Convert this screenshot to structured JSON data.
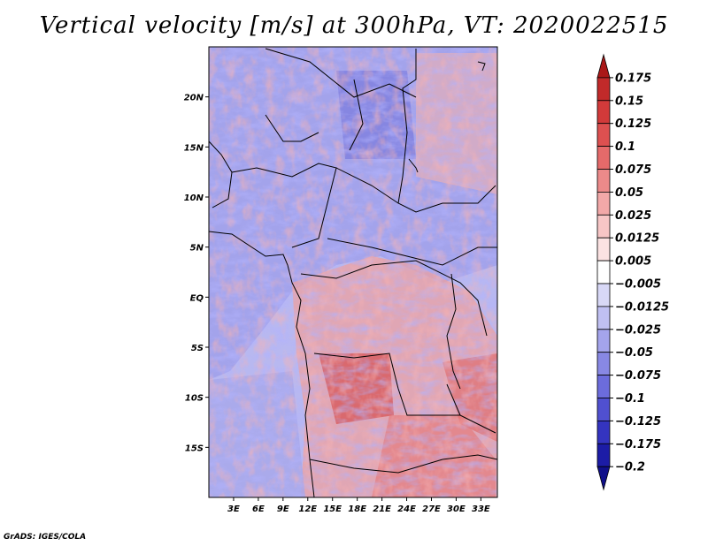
{
  "title": "Vertical velocity [m/s] at 300hPa, VT: 2020022515",
  "credit": "GrADS: IGES/COLA",
  "map": {
    "lon_range": [
      0,
      35
    ],
    "lat_range": [
      -20,
      25
    ],
    "lon_ticks": [
      "3E",
      "6E",
      "9E",
      "12E",
      "15E",
      "18E",
      "21E",
      "24E",
      "27E",
      "30E",
      "33E"
    ],
    "lat_ticks": [
      "20N",
      "15N",
      "10N",
      "5N",
      "EQ",
      "5S",
      "10S",
      "15S"
    ]
  },
  "colorbar": {
    "levels": [
      "0.175",
      "0.15",
      "0.125",
      "0.1",
      "0.075",
      "0.05",
      "0.025",
      "0.0125",
      "0.005",
      "−0.005",
      "−0.0125",
      "−0.025",
      "−0.05",
      "−0.075",
      "−0.1",
      "−0.125",
      "−0.175",
      "−0.2"
    ],
    "colors": [
      "#aa1818",
      "#c12a2a",
      "#d23a3a",
      "#dd5050",
      "#e56a6a",
      "#ec8a8a",
      "#f2a8a8",
      "#f7c6c6",
      "#fbe2e2",
      "#ffffff",
      "#d8d8f6",
      "#c0c0f2",
      "#a4a4ec",
      "#8888e4",
      "#6c6cdc",
      "#5050d0",
      "#3434c0",
      "#1c1ca6",
      "#10108a"
    ]
  }
}
